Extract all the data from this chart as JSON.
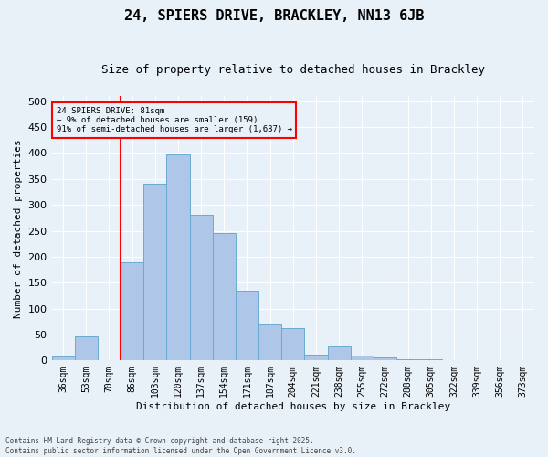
{
  "title_line1": "24, SPIERS DRIVE, BRACKLEY, NN13 6JB",
  "title_line2": "Size of property relative to detached houses in Brackley",
  "xlabel": "Distribution of detached houses by size in Brackley",
  "ylabel": "Number of detached properties",
  "categories": [
    "36sqm",
    "53sqm",
    "70sqm",
    "86sqm",
    "103sqm",
    "120sqm",
    "137sqm",
    "154sqm",
    "171sqm",
    "187sqm",
    "204sqm",
    "221sqm",
    "238sqm",
    "255sqm",
    "272sqm",
    "288sqm",
    "305sqm",
    "322sqm",
    "339sqm",
    "356sqm",
    "373sqm"
  ],
  "values": [
    8,
    47,
    0,
    189,
    340,
    398,
    280,
    246,
    135,
    70,
    62,
    12,
    27,
    10,
    5,
    3,
    2,
    1,
    0,
    0,
    0
  ],
  "bar_color": "#aec6e8",
  "bar_edge_color": "#6aaad4",
  "bg_color": "#e8f0f8",
  "grid_color": "#ffffff",
  "vline_color": "red",
  "annotation_text": "24 SPIERS DRIVE: 81sqm\n← 9% of detached houses are smaller (159)\n91% of semi-detached houses are larger (1,637) →",
  "annotation_box_color": "red",
  "ylim": [
    0,
    510
  ],
  "yticks": [
    0,
    50,
    100,
    150,
    200,
    250,
    300,
    350,
    400,
    450,
    500
  ],
  "footnote": "Contains HM Land Registry data © Crown copyright and database right 2025.\nContains public sector information licensed under the Open Government Licence v3.0.",
  "title_fontsize": 11,
  "subtitle_fontsize": 9,
  "tick_fontsize": 7,
  "label_fontsize": 8
}
